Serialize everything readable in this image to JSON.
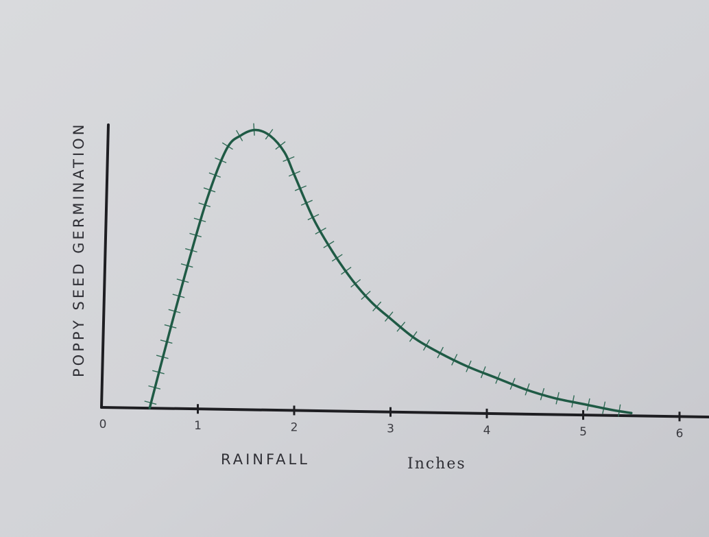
{
  "chart_data": {
    "type": "line",
    "title": "",
    "xlabel": "RAINFALL",
    "xunit": "Inches",
    "ylabel": "POPPY SEED GERMINATION",
    "xlim": [
      0,
      7.2
    ],
    "ylim": [
      0,
      1
    ],
    "x_ticks": [
      {
        "value": 0,
        "label": "0"
      },
      {
        "value": 1,
        "label": "1"
      },
      {
        "value": 2,
        "label": "2"
      },
      {
        "value": 3,
        "label": "3"
      },
      {
        "value": 4,
        "label": "4"
      },
      {
        "value": 5,
        "label": "5"
      },
      {
        "value": 6,
        "label": "6"
      }
    ],
    "series": [
      {
        "color": "#1f5a45",
        "x": [
          0.5,
          0.7,
          0.9,
          1.1,
          1.3,
          1.45,
          1.6,
          1.75,
          1.9,
          2.0,
          2.2,
          2.4,
          2.6,
          2.8,
          3.0,
          3.25,
          3.5,
          3.8,
          4.1,
          4.4,
          4.7,
          5.0,
          5.3,
          5.5
        ],
        "y": [
          0.0,
          0.27,
          0.53,
          0.77,
          0.95,
          1.0,
          1.02,
          1.0,
          0.94,
          0.86,
          0.7,
          0.58,
          0.48,
          0.4,
          0.34,
          0.27,
          0.22,
          0.17,
          0.13,
          0.09,
          0.06,
          0.04,
          0.02,
          0.01
        ]
      }
    ],
    "grid": false,
    "legend": "none"
  },
  "colors": {
    "paper": "#d3d4d8",
    "ink": "#1e1e22",
    "curve": "#1f5a45"
  }
}
